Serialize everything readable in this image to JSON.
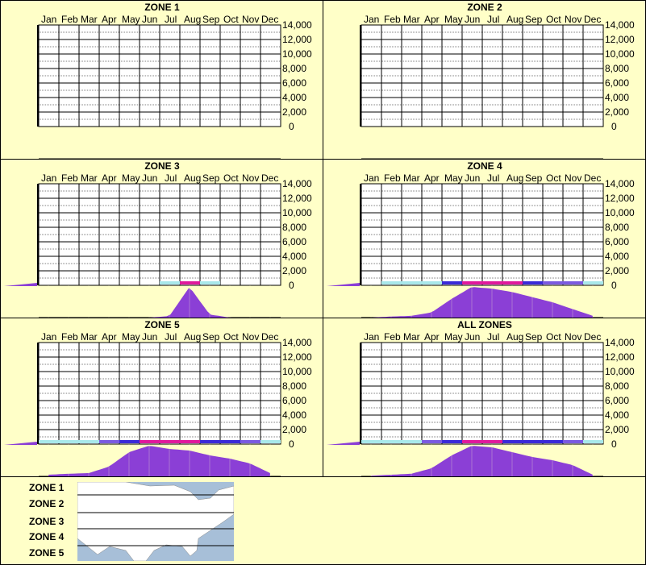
{
  "months": [
    "Jan",
    "Feb",
    "Mar",
    "Apr",
    "May",
    "Jun",
    "Jul",
    "Aug",
    "Sep",
    "Oct",
    "Nov",
    "Dec"
  ],
  "yticks": [
    "14,000",
    "12,000",
    "10,000",
    "8,000",
    "6,000",
    "4,000",
    "2,000",
    "0"
  ],
  "zones": [
    {
      "title": "ZONE 1"
    },
    {
      "title": "ZONE 2"
    },
    {
      "title": "ZONE 3"
    },
    {
      "title": "ZONE 4"
    },
    {
      "title": "ZONE 5"
    },
    {
      "title": "ALL ZONES"
    }
  ],
  "legend": {
    "labels": [
      "ZONE 1",
      "ZONE 2",
      "ZONE 3",
      "ZONE 4",
      "ZONE 5"
    ]
  },
  "colors": {
    "background": "#ffffc8",
    "purple": "#8b3fd6",
    "magenta": "#e0199c",
    "blue": "#3a2ad8",
    "cyan": "#a8e8ea",
    "map_water": "#a7bfd8",
    "map_land": "#ffffff"
  },
  "chart_data": [
    {
      "type": "heatmap",
      "title": "ZONE 1",
      "categories": [
        "Jan",
        "Feb",
        "Mar",
        "Apr",
        "May",
        "Jun",
        "Jul",
        "Aug",
        "Sep",
        "Oct",
        "Nov",
        "Dec"
      ],
      "ylim": [
        0,
        14000
      ],
      "values": [
        0,
        0,
        0,
        0,
        0,
        0,
        0,
        0,
        0,
        0,
        0,
        0
      ]
    },
    {
      "type": "heatmap",
      "title": "ZONE 2",
      "categories": [
        "Jan",
        "Feb",
        "Mar",
        "Apr",
        "May",
        "Jun",
        "Jul",
        "Aug",
        "Sep",
        "Oct",
        "Nov",
        "Dec"
      ],
      "ylim": [
        0,
        14000
      ],
      "values": [
        0,
        0,
        0,
        0,
        0,
        0,
        0,
        0,
        0,
        0,
        0,
        0
      ]
    },
    {
      "type": "area",
      "title": "ZONE 3",
      "categories": [
        "Jan",
        "Feb",
        "Mar",
        "Apr",
        "May",
        "Jun",
        "Jul",
        "Aug",
        "Sep",
        "Oct",
        "Nov",
        "Dec"
      ],
      "ylim": [
        0,
        14000
      ],
      "values": [
        0,
        0,
        0,
        0,
        0,
        0,
        0.05,
        1.0,
        0.1,
        0,
        0,
        0
      ]
    },
    {
      "type": "area",
      "title": "ZONE 4",
      "categories": [
        "Jan",
        "Feb",
        "Mar",
        "Apr",
        "May",
        "Jun",
        "Jul",
        "Aug",
        "Sep",
        "Oct",
        "Nov",
        "Dec"
      ],
      "ylim": [
        0,
        14000
      ],
      "values": [
        0,
        0.03,
        0.05,
        0.15,
        0.55,
        0.9,
        0.85,
        0.75,
        0.6,
        0.45,
        0.25,
        0.05
      ]
    },
    {
      "type": "area",
      "title": "ZONE 5",
      "categories": [
        "Jan",
        "Feb",
        "Mar",
        "Apr",
        "May",
        "Jun",
        "Jul",
        "Aug",
        "Sep",
        "Oct",
        "Nov",
        "Dec"
      ],
      "ylim": [
        0,
        14000
      ],
      "values": [
        0.05,
        0.08,
        0.1,
        0.3,
        0.75,
        0.95,
        0.85,
        0.8,
        0.65,
        0.55,
        0.4,
        0.1
      ]
    },
    {
      "type": "area",
      "title": "ALL ZONES",
      "categories": [
        "Jan",
        "Feb",
        "Mar",
        "Apr",
        "May",
        "Jun",
        "Jul",
        "Aug",
        "Sep",
        "Oct",
        "Nov",
        "Dec"
      ],
      "ylim": [
        0,
        14000
      ],
      "values": [
        0.02,
        0.05,
        0.08,
        0.25,
        0.65,
        0.95,
        0.9,
        0.75,
        0.6,
        0.5,
        0.35,
        0.05
      ]
    }
  ]
}
